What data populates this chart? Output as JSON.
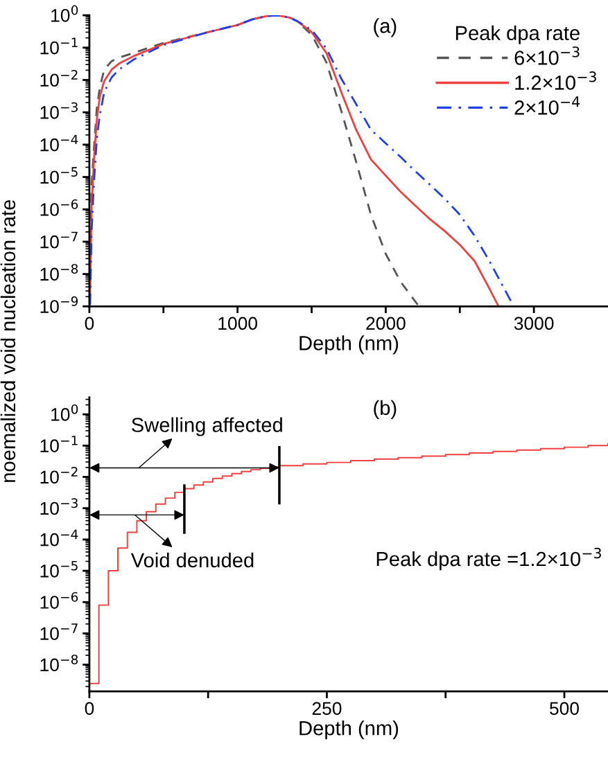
{
  "chart_data": [
    {
      "type": "line",
      "xlabel": "Depth (nm)",
      "ylabel": "noemalized void nucleation rate",
      "legend_title": "Peak dpa rate",
      "legend": "top right",
      "log": "y",
      "grid": false,
      "xlim": [
        0,
        3500
      ],
      "xticks": [
        0,
        {
          "value": 500,
          "label": null
        },
        1000,
        {
          "value": 1500,
          "label": null
        },
        2000,
        {
          "value": 2500,
          "label": null
        },
        3000
      ],
      "ylim": [
        1e-09,
        1
      ],
      "yticks": [
        {
          "value": 1e-09,
          "label": "10$^{−9}$"
        },
        {
          "value": 1e-08,
          "label": "10$^{−8}$"
        },
        {
          "value": 1e-07,
          "label": "10$^{−7}$"
        },
        {
          "value": 1e-06,
          "label": "10$^{−6}$"
        },
        {
          "value": 1e-05,
          "label": "10$^{−5}$"
        },
        {
          "value": 0.0001,
          "label": "10$^{−4}$"
        },
        {
          "value": 0.001,
          "label": "10$^{−3}$"
        },
        {
          "value": 0.01,
          "label": "10$^{−2}$"
        },
        {
          "value": 0.1,
          "label": "10$^{−1}$"
        },
        {
          "value": 1,
          "label": "10$^{0}$"
        }
      ],
      "annotations": [
        "(a)"
      ],
      "series": [
        {
          "name": "6×10$^{−3}$",
          "color": "#555555",
          "line_style": "dashed",
          "x": [
            5,
            15,
            30,
            50,
            70,
            100,
            150,
            200,
            300,
            500,
            800,
            1000,
            1100,
            1200,
            1270,
            1350,
            1400,
            1500,
            1600,
            1700,
            1800,
            1900,
            2000,
            2100,
            2224
          ],
          "values": [
            4e-08,
            5.7e-06,
            6.8e-05,
            0.0013,
            0.0057,
            0.021,
            0.038,
            0.049,
            0.069,
            0.14,
            0.3,
            0.5,
            0.75,
            0.95,
            1.0,
            0.85,
            0.67,
            0.25,
            0.035,
            0.0011,
            3e-05,
            6.8e-07,
            4.2e-08,
            5.8e-09,
            1e-09
          ]
        },
        {
          "name": "1.2×10$^{−3}$",
          "color": "#f04040",
          "line_style": "solid",
          "x": [
            5,
            15,
            30,
            50,
            70,
            100,
            150,
            200,
            300,
            500,
            800,
            1000,
            1100,
            1200,
            1270,
            1350,
            1400,
            1500,
            1600,
            1700,
            1800,
            1900,
            2000,
            2100,
            2200,
            2300,
            2400,
            2500,
            2600,
            2700,
            2761
          ],
          "values": [
            2.5e-09,
            1.1e-06,
            3e-05,
            0.00058,
            0.003,
            0.0093,
            0.021,
            0.032,
            0.055,
            0.13,
            0.3,
            0.5,
            0.75,
            0.95,
            1.0,
            0.85,
            0.67,
            0.3,
            0.068,
            0.0042,
            0.00029,
            3.5e-05,
            1.1e-05,
            3.5e-06,
            1.3e-06,
            4.9e-07,
            2.1e-07,
            8e-08,
            2.5e-08,
            3.5e-09,
            1e-09
          ]
        },
        {
          "name": "2×10$^{−4}$",
          "color": "#2040f0",
          "line_style": "dashdot",
          "x": [
            5,
            15,
            30,
            50,
            70,
            100,
            150,
            200,
            300,
            500,
            800,
            1000,
            1100,
            1200,
            1270,
            1350,
            1400,
            1500,
            1600,
            1700,
            1800,
            1900,
            2000,
            2100,
            2200,
            2300,
            2400,
            2500,
            2600,
            2700,
            2800,
            2864
          ],
          "values": [
            1.1e-09,
            2.1e-07,
            5.7e-06,
            0.00015,
            0.0008,
            0.0042,
            0.012,
            0.021,
            0.043,
            0.12,
            0.3,
            0.5,
            0.75,
            0.95,
            1.0,
            0.85,
            0.67,
            0.35,
            0.094,
            0.011,
            0.0018,
            0.00029,
            0.00011,
            4.2e-05,
            1.5e-05,
            5.7e-06,
            2.1e-06,
            6.8e-07,
            1.5e-07,
            2.5e-08,
            3.5e-09,
            1e-09
          ]
        }
      ]
    },
    {
      "type": "step",
      "xlabel": "Depth (nm)",
      "log": "y",
      "grid": false,
      "legend": false,
      "xlim": [
        0,
        546
      ],
      "xticks": [
        0,
        {
          "value": 125,
          "label": null
        },
        250,
        {
          "value": 375,
          "label": null
        },
        500
      ],
      "ylim": [
        1.4e-09,
        3.5
      ],
      "yticks": [
        {
          "value": 1e-08,
          "label": "10$^{−8}$"
        },
        {
          "value": 1e-07,
          "label": "10$^{−7}$"
        },
        {
          "value": 1e-06,
          "label": "10$^{−6}$"
        },
        {
          "value": 1e-05,
          "label": "10$^{−5}$"
        },
        {
          "value": 0.0001,
          "label": "10$^{−4}$"
        },
        {
          "value": 0.001,
          "label": "10$^{−3}$"
        },
        {
          "value": 0.01,
          "label": "10$^{−2}$"
        },
        {
          "value": 0.1,
          "label": "10$^{−1}$"
        },
        {
          "value": 1,
          "label": "10$^{0}$"
        }
      ],
      "annotations": [
        "(b)",
        "Peak dpa rate =1.2×10$^{−3}$"
      ],
      "ref_lines": [
        {
          "axis": "x",
          "value": 200,
          "color": "#000000",
          "label": "Swelling affected"
        },
        {
          "axis": "x",
          "value": 100,
          "color": "#000000",
          "label": "Void denuded"
        }
      ],
      "series": [
        {
          "color": "#f04040",
          "x": [
            0,
            10,
            20,
            30,
            40,
            50,
            60,
            70,
            80,
            90,
            100,
            110,
            120,
            130,
            140,
            150,
            160,
            170,
            180,
            190,
            200,
            225,
            250,
            275,
            300,
            325,
            350,
            375,
            400,
            425,
            450,
            475,
            500,
            525,
            546
          ],
          "values": [
            2.5e-09,
            8e-07,
            1e-05,
            5.3e-05,
            0.00017,
            0.0004,
            0.00077,
            0.00135,
            0.0021,
            0.0032,
            0.0042,
            0.0055,
            0.0069,
            0.0089,
            0.0107,
            0.0128,
            0.0148,
            0.017,
            0.019,
            0.021,
            0.023,
            0.026,
            0.029,
            0.033,
            0.037,
            0.041,
            0.046,
            0.052,
            0.058,
            0.065,
            0.072,
            0.08,
            0.089,
            0.1,
            0.115
          ]
        }
      ]
    }
  ]
}
